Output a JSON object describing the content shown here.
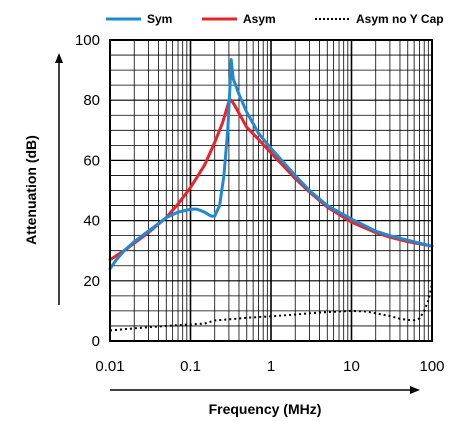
{
  "chart_data": {
    "type": "line",
    "title": "",
    "xlabel": "Frequency (MHz)",
    "ylabel": "Attenuation (dB)",
    "x_scale": "log",
    "xlim": [
      0.01,
      100
    ],
    "ylim": [
      0,
      100
    ],
    "x_ticks": [
      0.01,
      0.1,
      1,
      10,
      100
    ],
    "x_tick_labels": [
      "0.01",
      "0.1",
      "1",
      "10",
      "100"
    ],
    "y_ticks": [
      0,
      20,
      40,
      60,
      80,
      100
    ],
    "y_tick_labels": [
      "0",
      "20",
      "40",
      "60",
      "80",
      "100"
    ],
    "grid": true,
    "legend_position": "top",
    "series": [
      {
        "name": "Sym",
        "color": "#1f8ad1",
        "style": "solid",
        "points": [
          [
            0.01,
            24
          ],
          [
            0.012,
            27
          ],
          [
            0.015,
            30
          ],
          [
            0.02,
            33
          ],
          [
            0.03,
            36.5
          ],
          [
            0.04,
            39
          ],
          [
            0.05,
            41
          ],
          [
            0.07,
            42.8
          ],
          [
            0.1,
            43.8
          ],
          [
            0.12,
            43.8
          ],
          [
            0.15,
            42.8
          ],
          [
            0.18,
            41.5
          ],
          [
            0.2,
            41.5
          ],
          [
            0.23,
            45
          ],
          [
            0.26,
            55
          ],
          [
            0.29,
            70
          ],
          [
            0.31,
            85
          ],
          [
            0.32,
            93.5
          ],
          [
            0.34,
            87
          ],
          [
            0.4,
            82
          ],
          [
            0.5,
            76
          ],
          [
            0.7,
            69
          ],
          [
            1,
            64
          ],
          [
            2,
            55
          ],
          [
            3,
            50
          ],
          [
            5,
            45
          ],
          [
            10,
            40.5
          ],
          [
            20,
            36.5
          ],
          [
            30,
            35
          ],
          [
            50,
            33.5
          ],
          [
            100,
            31.5
          ]
        ]
      },
      {
        "name": "Asym",
        "color": "#e8232a",
        "style": "solid",
        "points": [
          [
            0.01,
            27
          ],
          [
            0.015,
            30
          ],
          [
            0.02,
            32.5
          ],
          [
            0.03,
            36
          ],
          [
            0.05,
            41
          ],
          [
            0.07,
            45.5
          ],
          [
            0.1,
            51
          ],
          [
            0.15,
            58.5
          ],
          [
            0.2,
            66
          ],
          [
            0.25,
            72.5
          ],
          [
            0.3,
            79.5
          ],
          [
            0.32,
            80
          ],
          [
            0.35,
            78.5
          ],
          [
            0.5,
            71
          ],
          [
            0.7,
            67
          ],
          [
            1,
            62.5
          ],
          [
            2,
            54
          ],
          [
            3,
            49.5
          ],
          [
            5,
            44.5
          ],
          [
            10,
            39.5
          ],
          [
            20,
            36
          ],
          [
            30,
            34.5
          ],
          [
            50,
            33
          ],
          [
            100,
            31.5
          ]
        ]
      },
      {
        "name": "Asym no Y Cap",
        "color": "#000000",
        "style": "dotted",
        "points": [
          [
            0.01,
            3.5
          ],
          [
            0.02,
            4.2
          ],
          [
            0.05,
            5
          ],
          [
            0.1,
            5.5
          ],
          [
            0.15,
            5.8
          ],
          [
            0.2,
            6.8
          ],
          [
            0.3,
            7.2
          ],
          [
            0.5,
            7.7
          ],
          [
            1,
            8.2
          ],
          [
            2,
            8.8
          ],
          [
            3,
            9.2
          ],
          [
            5,
            9.6
          ],
          [
            10,
            10
          ],
          [
            15,
            9.8
          ],
          [
            20,
            9.2
          ],
          [
            30,
            8.3
          ],
          [
            40,
            7.4
          ],
          [
            50,
            7
          ],
          [
            60,
            6.9
          ],
          [
            70,
            7.5
          ],
          [
            80,
            10
          ],
          [
            90,
            13.5
          ],
          [
            100,
            19
          ]
        ]
      }
    ]
  }
}
